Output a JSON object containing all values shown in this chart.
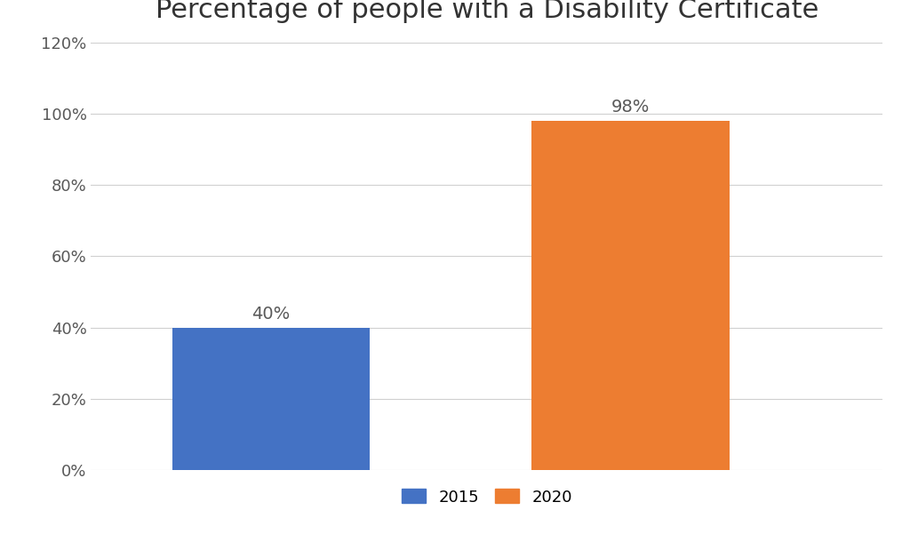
{
  "title": "Percentage of people with a Disability Certificate",
  "categories": [
    "2015",
    "2020"
  ],
  "values": [
    40,
    98
  ],
  "bar_colors": [
    "#4472C4",
    "#ED7D31"
  ],
  "bar_labels": [
    "40%",
    "98%"
  ],
  "ylim": [
    0,
    120
  ],
  "yticks": [
    0,
    20,
    40,
    60,
    80,
    100,
    120
  ],
  "ytick_labels": [
    "0%",
    "20%",
    "40%",
    "60%",
    "80%",
    "100%",
    "120%"
  ],
  "background_color": "#FFFFFF",
  "grid_color": "#D0D0D0",
  "title_fontsize": 22,
  "tick_fontsize": 13,
  "label_fontsize": 14,
  "legend_fontsize": 13,
  "bar_width": 0.55
}
